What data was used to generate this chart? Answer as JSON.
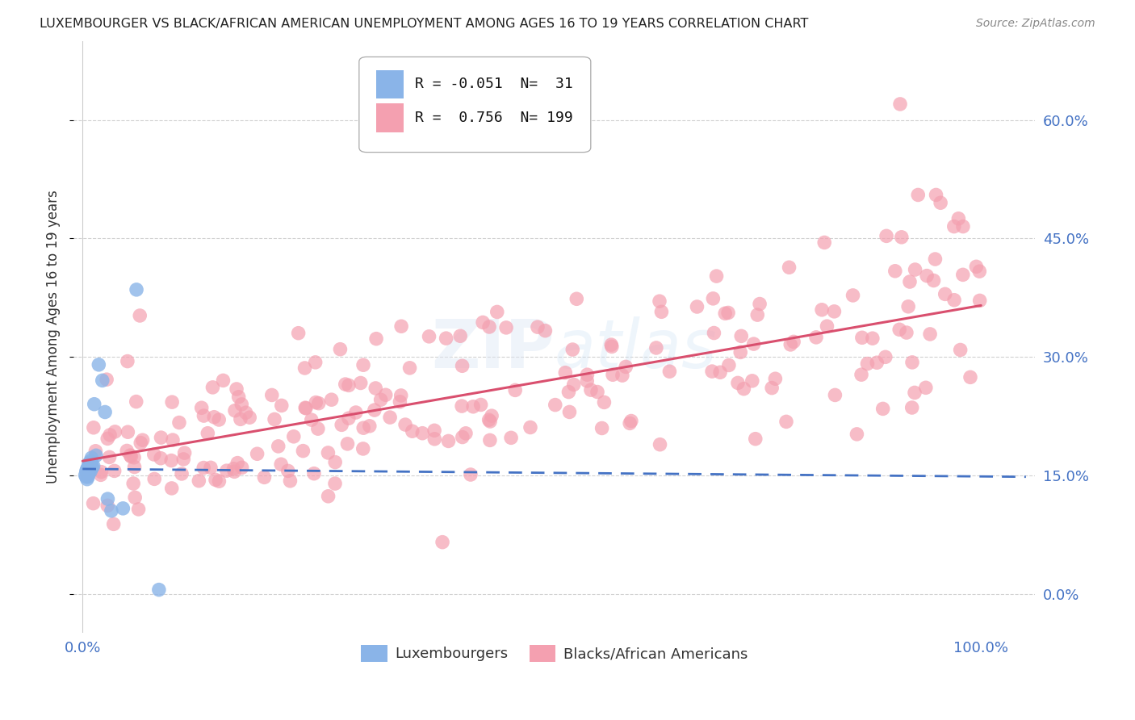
{
  "title": "LUXEMBOURGER VS BLACK/AFRICAN AMERICAN UNEMPLOYMENT AMONG AGES 16 TO 19 YEARS CORRELATION CHART",
  "source": "Source: ZipAtlas.com",
  "ylabel": "Unemployment Among Ages 16 to 19 years",
  "blue_R": -0.051,
  "blue_N": 31,
  "pink_R": 0.756,
  "pink_N": 199,
  "blue_label": "Luxembourgers",
  "pink_label": "Blacks/African Americans",
  "blue_color": "#8ab4e8",
  "pink_color": "#f4a0b0",
  "blue_line_color": "#4472c4",
  "pink_line_color": "#d94f6e",
  "right_yticks": [
    0.0,
    0.15,
    0.3,
    0.45,
    0.6
  ],
  "right_ytick_labels": [
    "0.0%",
    "15.0%",
    "30.0%",
    "45.0%",
    "60.0%"
  ],
  "ylim": [
    -0.05,
    0.7
  ],
  "xlim": [
    -0.01,
    1.06
  ],
  "watermark": "ZIPAtlas",
  "title_color": "#222222",
  "axis_label_color": "#333333",
  "tick_color": "#4472c4",
  "grid_color": "#cccccc",
  "background_color": "#ffffff",
  "blue_x": [
    0.003,
    0.004,
    0.004,
    0.005,
    0.005,
    0.005,
    0.006,
    0.006,
    0.006,
    0.007,
    0.007,
    0.007,
    0.007,
    0.008,
    0.008,
    0.009,
    0.009,
    0.01,
    0.01,
    0.011,
    0.012,
    0.013,
    0.015,
    0.018,
    0.022,
    0.025,
    0.028,
    0.032,
    0.045,
    0.06,
    0.085
  ],
  "blue_y": [
    0.15,
    0.155,
    0.148,
    0.145,
    0.152,
    0.158,
    0.16,
    0.155,
    0.148,
    0.162,
    0.158,
    0.152,
    0.165,
    0.162,
    0.158,
    0.168,
    0.155,
    0.172,
    0.165,
    0.16,
    0.162,
    0.24,
    0.175,
    0.29,
    0.27,
    0.23,
    0.12,
    0.105,
    0.108,
    0.385,
    0.005
  ],
  "pink_trend_start_y": 0.168,
  "pink_trend_end_y": 0.365,
  "blue_trend_start_y": 0.158,
  "blue_trend_end_y": 0.148
}
